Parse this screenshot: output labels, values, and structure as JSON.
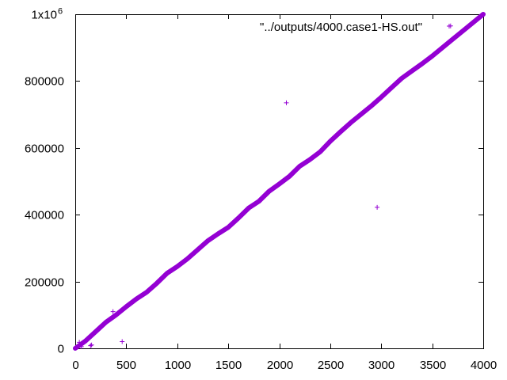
{
  "chart_data": {
    "type": "scatter",
    "title": "",
    "xlabel": "",
    "ylabel": "",
    "xlim": [
      0,
      4000
    ],
    "ylim": [
      0,
      1000000
    ],
    "x_ticks": [
      0,
      500,
      1000,
      1500,
      2000,
      2500,
      3000,
      3500,
      4000
    ],
    "y_ticks": [
      0,
      200000,
      400000,
      600000,
      800000,
      1000000
    ],
    "y_tick_labels": [
      "0",
      "200000",
      "400000",
      "600000",
      "800000",
      "1x10"
    ],
    "y_top_exponent": "6",
    "grid": false,
    "legend_position": "top-right",
    "marker": "+",
    "series": [
      {
        "name": "\"../outputs/4000.case1-HS.out\"",
        "color": "#9400d3",
        "main_trend": [
          [
            0,
            0
          ],
          [
            100,
            22000
          ],
          [
            200,
            50000
          ],
          [
            300,
            78000
          ],
          [
            400,
            100000
          ],
          [
            500,
            125000
          ],
          [
            600,
            148000
          ],
          [
            700,
            168000
          ],
          [
            800,
            195000
          ],
          [
            900,
            225000
          ],
          [
            1000,
            245000
          ],
          [
            1100,
            268000
          ],
          [
            1200,
            295000
          ],
          [
            1300,
            322000
          ],
          [
            1400,
            343000
          ],
          [
            1500,
            362000
          ],
          [
            1600,
            390000
          ],
          [
            1700,
            420000
          ],
          [
            1800,
            440000
          ],
          [
            1900,
            470000
          ],
          [
            2000,
            492000
          ],
          [
            2100,
            515000
          ],
          [
            2200,
            545000
          ],
          [
            2300,
            565000
          ],
          [
            2400,
            588000
          ],
          [
            2500,
            620000
          ],
          [
            2600,
            648000
          ],
          [
            2700,
            675000
          ],
          [
            2800,
            700000
          ],
          [
            2900,
            725000
          ],
          [
            3000,
            752000
          ],
          [
            3100,
            780000
          ],
          [
            3200,
            808000
          ],
          [
            3300,
            830000
          ],
          [
            3400,
            852000
          ],
          [
            3500,
            875000
          ],
          [
            3600,
            900000
          ],
          [
            3700,
            925000
          ],
          [
            3800,
            950000
          ],
          [
            3900,
            975000
          ],
          [
            4000,
            1000000
          ]
        ],
        "outliers": [
          [
            40,
            18000
          ],
          [
            60,
            5000
          ],
          [
            150,
            8000
          ],
          [
            160,
            10000
          ],
          [
            370,
            110000
          ],
          [
            460,
            20000
          ],
          [
            2070,
            735000
          ],
          [
            2960,
            422000
          ],
          [
            3680,
            965000
          ]
        ]
      }
    ]
  }
}
